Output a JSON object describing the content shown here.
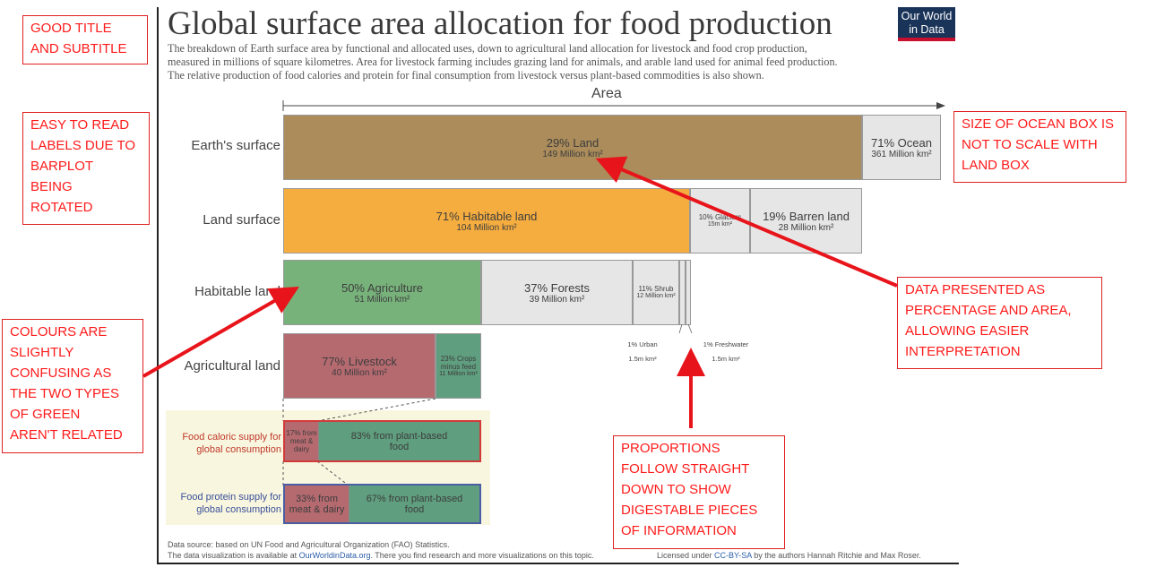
{
  "chart_data": {
    "type": "bar",
    "title": "Global surface area allocation for food production",
    "subtitle": "The breakdown of Earth surface area by functional and allocated uses, down to agricultural land allocation for livestock and food crop production,\nmeasured in millions of square kilometres. Area for livestock farming includes grazing land for animals, and arable land used for animal feed production.\nThe relative production of food calories and protein for final consumption from livestock versus plant-based commodities is also shown.",
    "xlabel": "Area",
    "logo": "Our World in Data",
    "rows": [
      {
        "label": "Earth's surface",
        "segments": [
          {
            "name": "29% Land",
            "value_label": "149 Million km²",
            "value": 149,
            "color": "#ab8c5a"
          },
          {
            "name": "71% Ocean",
            "value_label": "361 Million km²",
            "value": 361,
            "color": "#e6e6e6"
          }
        ]
      },
      {
        "label": "Land surface",
        "segments": [
          {
            "name": "71% Habitable land",
            "value_label": "104 Million km²",
            "value": 104,
            "color": "#f6ad3f"
          },
          {
            "name": "10% Glaciers",
            "value_label": "15m km²",
            "value": 15,
            "color": "#e6e6e6"
          },
          {
            "name": "19% Barren land",
            "value_label": "28 Million km²",
            "value": 28,
            "color": "#e6e6e6"
          }
        ]
      },
      {
        "label": "Habitable land",
        "segments": [
          {
            "name": "50% Agriculture",
            "value_label": "51 Million km²",
            "value": 51,
            "color": "#78b27b"
          },
          {
            "name": "37% Forests",
            "value_label": "39 Million km²",
            "value": 39,
            "color": "#e6e6e6"
          },
          {
            "name": "11% Shrub",
            "value_label": "12 Million km²",
            "value": 12,
            "color": "#e6e6e6"
          },
          {
            "name": "1% Urban",
            "value_label": "1.5m km²",
            "value": 1.5,
            "color": "#e6e6e6"
          },
          {
            "name": "1% Freshwater",
            "value_label": "1.5m km²",
            "value": 1.5,
            "color": "#e6e6e6"
          }
        ]
      },
      {
        "label": "Agricultural land",
        "segments": [
          {
            "name": "77% Livestock",
            "value_label": "40 Million km²",
            "value": 40,
            "color": "#b56a70"
          },
          {
            "name": "23% Crops minus feed",
            "value_label": "11 Million km²",
            "value": 11,
            "color": "#5f9e7e"
          }
        ]
      }
    ],
    "supply": [
      {
        "label": "Food caloric supply for\nglobal consumption",
        "label_color": "#c0392b",
        "segments": [
          {
            "name": "17% from meat & dairy",
            "value": 17,
            "color": "#b56a70"
          },
          {
            "name": "83% from plant-based food",
            "value": 83,
            "color": "#5f9e7e"
          }
        ]
      },
      {
        "label": "Food protein supply for\nglobal consumption",
        "label_color": "#3a4f9a",
        "segments": [
          {
            "name": "33% from meat & dairy",
            "value": 33,
            "color": "#b56a70"
          },
          {
            "name": "67% from plant-based food",
            "value": 67,
            "color": "#5f9e7e"
          }
        ]
      }
    ],
    "footer": {
      "source": "Data source: based on UN Food and Agricultural Organization (FAO) Statistics.",
      "line2_pre": "The data visualization is available at ",
      "line2_link": "OurWorldinData.org",
      "line2_post": ". There you find research and more visualizations on this topic.",
      "license_pre": "Licensed under ",
      "license_link": "CC-BY-SA",
      "license_post": " by the authors Hannah Ritchie and Max Roser."
    }
  },
  "annotations": {
    "title_note": "GOOD TITLE\nAND SUBTITLE",
    "labels_note": "EASY TO READ\nLABELS DUE TO\nBARPLOT\nBEING\nROTATED",
    "colours_note": "COLOURS ARE\nSLIGHTLY\nCONFUSING AS\nTHE TWO TYPES\nOF GREEN\nAREN'T RELATED",
    "ocean_note": "SIZE OF OCEAN BOX IS\nNOT TO SCALE WITH\nLAND BOX",
    "data_note": "DATA PRESENTED AS\nPERCENTAGE AND AREA,\nALLOWING EASIER\nINTERPRETATION",
    "proportions_note": "PROPORTIONS\nFOLLOW STRAIGHT\nDOWN TO SHOW\nDIGESTABLE PIECES\nOF INFORMATION",
    "arrow_color": "#e8141b"
  }
}
